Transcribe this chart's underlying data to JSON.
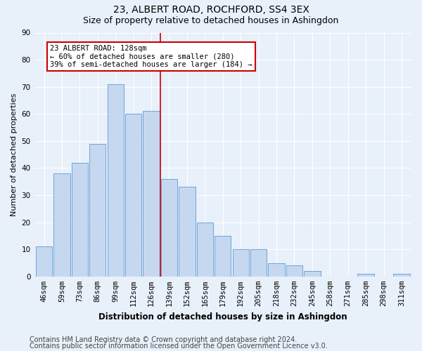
{
  "title": "23, ALBERT ROAD, ROCHFORD, SS4 3EX",
  "subtitle": "Size of property relative to detached houses in Ashingdon",
  "xlabel": "Distribution of detached houses by size in Ashingdon",
  "ylabel": "Number of detached properties",
  "categories": [
    "46sqm",
    "59sqm",
    "73sqm",
    "86sqm",
    "99sqm",
    "112sqm",
    "126sqm",
    "139sqm",
    "152sqm",
    "165sqm",
    "179sqm",
    "192sqm",
    "205sqm",
    "218sqm",
    "232sqm",
    "245sqm",
    "258sqm",
    "271sqm",
    "285sqm",
    "298sqm",
    "311sqm"
  ],
  "values": [
    11,
    38,
    42,
    49,
    71,
    60,
    61,
    36,
    33,
    20,
    15,
    10,
    10,
    5,
    4,
    2,
    0,
    0,
    1,
    0,
    1
  ],
  "bar_color": "#c5d8f0",
  "bar_edge_color": "#5b9bd5",
  "highlight_line_index": 6,
  "annotation_line1": "23 ALBERT ROAD: 128sqm",
  "annotation_line2": "← 60% of detached houses are smaller (280)",
  "annotation_line3": "39% of semi-detached houses are larger (184) →",
  "annotation_box_color": "#ffffff",
  "annotation_box_edge_color": "#cc0000",
  "vline_color": "#cc0000",
  "footer1": "Contains HM Land Registry data © Crown copyright and database right 2024.",
  "footer2": "Contains public sector information licensed under the Open Government Licence v3.0.",
  "bg_color": "#e8f0fa",
  "plot_bg_color": "#e8f0fa",
  "ylim": [
    0,
    90
  ],
  "yticks": [
    0,
    10,
    20,
    30,
    40,
    50,
    60,
    70,
    80,
    90
  ],
  "title_fontsize": 10,
  "subtitle_fontsize": 9,
  "xlabel_fontsize": 8.5,
  "ylabel_fontsize": 8,
  "tick_fontsize": 7.5,
  "footer_fontsize": 7
}
